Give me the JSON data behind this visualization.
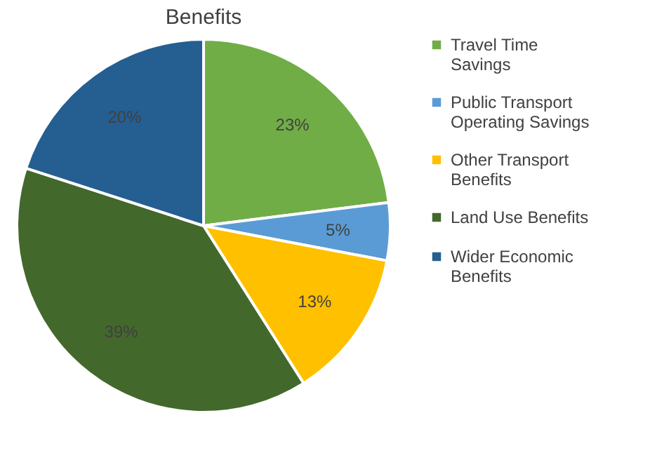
{
  "chart_data": {
    "type": "pie",
    "title": "Benefits",
    "categories": [
      "Travel Time Savings",
      "Public Transport Operating Savings",
      "Other Transport Benefits",
      "Land Use Benefits",
      "Wider Economic Benefits"
    ],
    "values": [
      23,
      5,
      13,
      39,
      20
    ],
    "colors": [
      "#70ad47",
      "#5b9bd5",
      "#ffc000",
      "#43682b",
      "#255e91"
    ],
    "value_labels": [
      "23%",
      "5%",
      "13%",
      "39%",
      "20%"
    ],
    "legend": "right"
  }
}
